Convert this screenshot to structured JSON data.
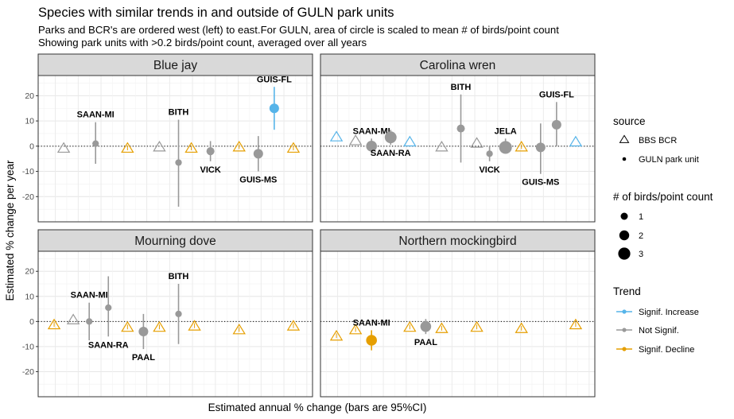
{
  "chart_data": {
    "type": "scatter",
    "title": "Species with similar trends in and outside of GULN park units",
    "subtitle_lines": [
      "Parks and BCR's are ordered west (left) to east.For GULN, area of circle is scaled to mean # of birds/point count",
      "Showing park units with >0.2 birds/point count, averaged over all years"
    ],
    "xlabel": "Estimated annual % change (bars are 95%CI)",
    "ylabel": "Estimated % change per year",
    "ylim": [
      -30,
      28
    ],
    "yticks": [
      20,
      10,
      0,
      -10,
      -20
    ],
    "ytick_labels": [
      "20",
      "10",
      "0",
      "-10",
      "-20"
    ],
    "reference_line": 0,
    "grid": true,
    "legends": {
      "source": {
        "title": "source",
        "items": [
          {
            "label": "BBS BCR",
            "shape": "triangle-open"
          },
          {
            "label": "GULN park unit",
            "shape": "circle"
          }
        ]
      },
      "size": {
        "title": "# of birds/point count",
        "items": [
          {
            "label": "1",
            "value": 1
          },
          {
            "label": "2",
            "value": 2
          },
          {
            "label": "3",
            "value": 3
          }
        ]
      },
      "trend": {
        "title": "Trend",
        "items": [
          {
            "label": "Signif. Increase",
            "color": "#56B4E9"
          },
          {
            "label": "Not Signif.",
            "color": "#999999"
          },
          {
            "label": "Signif. Decline",
            "color": "#E69F00"
          }
        ]
      }
    },
    "panels": [
      {
        "title": "Blue jay",
        "points": [
          {
            "x": 1,
            "y": -1,
            "source": "BBS BCR",
            "trend": "Not Signif."
          },
          {
            "x": 2,
            "y": 1,
            "lo": -7,
            "hi": 9.5,
            "source": "GULN park unit",
            "trend": "Not Signif.",
            "size": 0.2,
            "label": "SAAN-MI"
          },
          {
            "x": 3,
            "y": -1,
            "source": "BBS BCR",
            "trend": "Signif. Decline"
          },
          {
            "x": 4,
            "y": -0.5,
            "source": "BBS BCR",
            "trend": "Not Signif."
          },
          {
            "x": 4.6,
            "y": -6.5,
            "lo": -24,
            "hi": 10.5,
            "source": "GULN park unit",
            "trend": "Not Signif.",
            "size": 0.2,
            "label": "BITH"
          },
          {
            "x": 5,
            "y": -1,
            "source": "BBS BCR",
            "trend": "Signif. Decline"
          },
          {
            "x": 5.6,
            "y": -2,
            "lo": -6,
            "hi": 2,
            "source": "GULN park unit",
            "trend": "Not Signif.",
            "size": 0.5,
            "label": "VICK"
          },
          {
            "x": 6.5,
            "y": -0.5,
            "source": "BBS BCR",
            "trend": "Signif. Decline"
          },
          {
            "x": 7.1,
            "y": -3,
            "lo": -10,
            "hi": 4,
            "source": "GULN park unit",
            "trend": "Not Signif.",
            "size": 1,
            "label": "GUIS-MS"
          },
          {
            "x": 7.6,
            "y": 15,
            "lo": 6.5,
            "hi": 23.5,
            "source": "GULN park unit",
            "trend": "Signif. Increase",
            "size": 1,
            "label": "GUIS-FL"
          },
          {
            "x": 8.2,
            "y": -1,
            "source": "BBS BCR",
            "trend": "Signif. Decline"
          }
        ]
      },
      {
        "title": "Carolina wren",
        "points": [
          {
            "x": 0.7,
            "y": 3.5,
            "source": "BBS BCR",
            "trend": "Signif. Increase"
          },
          {
            "x": 1.3,
            "y": 2,
            "source": "BBS BCR",
            "trend": "Not Signif."
          },
          {
            "x": 1.8,
            "y": 0,
            "lo": -3,
            "hi": 3,
            "source": "GULN park unit",
            "trend": "Not Signif.",
            "size": 1.5,
            "label": "SAAN-MI"
          },
          {
            "x": 2.4,
            "y": 3.5,
            "lo": 0.5,
            "hi": 6.5,
            "source": "GULN park unit",
            "trend": "Not Signif.",
            "size": 2,
            "label": "SAAN-RA"
          },
          {
            "x": 3,
            "y": 1.5,
            "source": "BBS BCR",
            "trend": "Signif. Increase"
          },
          {
            "x": 4,
            "y": -0.5,
            "source": "BBS BCR",
            "trend": "Not Signif."
          },
          {
            "x": 4.6,
            "y": 7,
            "lo": -6.5,
            "hi": 20.5,
            "source": "GULN park unit",
            "trend": "Not Signif.",
            "size": 0.5,
            "label": "BITH"
          },
          {
            "x": 5.1,
            "y": 1,
            "source": "BBS BCR",
            "trend": "Not Signif."
          },
          {
            "x": 5.5,
            "y": -3,
            "lo": -6,
            "hi": 0,
            "source": "GULN park unit",
            "trend": "Not Signif.",
            "size": 0.2,
            "label": "VICK"
          },
          {
            "x": 6,
            "y": -0.5,
            "lo": -3,
            "hi": 3,
            "source": "GULN park unit",
            "trend": "Not Signif.",
            "size": 2.5,
            "label": "JELA"
          },
          {
            "x": 6.5,
            "y": -0.5,
            "source": "BBS BCR",
            "trend": "Signif. Decline"
          },
          {
            "x": 7.1,
            "y": -0.5,
            "lo": -11,
            "hi": 9,
            "source": "GULN park unit",
            "trend": "Not Signif.",
            "size": 1,
            "label": "GUIS-MS"
          },
          {
            "x": 7.6,
            "y": 8.5,
            "lo": 0,
            "hi": 17.5,
            "source": "GULN park unit",
            "trend": "Not Signif.",
            "size": 1,
            "label": "GUIS-FL"
          },
          {
            "x": 8.2,
            "y": 1.5,
            "source": "BBS BCR",
            "trend": "Signif. Increase"
          }
        ]
      },
      {
        "title": "Mourning dove",
        "points": [
          {
            "x": 0.7,
            "y": -1.5,
            "source": "BBS BCR",
            "trend": "Signif. Decline"
          },
          {
            "x": 1.3,
            "y": 0.5,
            "source": "BBS BCR",
            "trend": "Not Signif."
          },
          {
            "x": 1.8,
            "y": 0,
            "lo": -7.5,
            "hi": 7.5,
            "source": "GULN park unit",
            "trend": "Not Signif.",
            "size": 0.2,
            "label": "SAAN-MI"
          },
          {
            "x": 2.4,
            "y": 5.5,
            "lo": -6,
            "hi": 18,
            "source": "GULN park unit",
            "trend": "Not Signif.",
            "size": 0.2,
            "label": "SAAN-RA"
          },
          {
            "x": 3,
            "y": -2.5,
            "source": "BBS BCR",
            "trend": "Signif. Decline"
          },
          {
            "x": 3.5,
            "y": -4,
            "lo": -11,
            "hi": 3,
            "source": "GULN park unit",
            "trend": "Not Signif.",
            "size": 1,
            "label": "PAAL"
          },
          {
            "x": 4,
            "y": -2.5,
            "source": "BBS BCR",
            "trend": "Signif. Decline"
          },
          {
            "x": 4.6,
            "y": 3,
            "lo": -9,
            "hi": 15,
            "source": "GULN park unit",
            "trend": "Not Signif.",
            "size": 0.2,
            "label": "BITH"
          },
          {
            "x": 5.1,
            "y": -2,
            "source": "BBS BCR",
            "trend": "Signif. Decline"
          },
          {
            "x": 6.5,
            "y": -3.5,
            "source": "BBS BCR",
            "trend": "Signif. Decline"
          },
          {
            "x": 8.2,
            "y": -2,
            "source": "BBS BCR",
            "trend": "Signif. Decline"
          }
        ]
      },
      {
        "title": "Northern mockingbird",
        "points": [
          {
            "x": 0.7,
            "y": -6,
            "source": "BBS BCR",
            "trend": "Signif. Decline"
          },
          {
            "x": 1.3,
            "y": -3.5,
            "source": "BBS BCR",
            "trend": "Signif. Decline"
          },
          {
            "x": 1.8,
            "y": -7.5,
            "lo": -11.5,
            "hi": -3.5,
            "source": "GULN park unit",
            "trend": "Signif. Decline",
            "size": 1.5,
            "label": "SAAN-MI"
          },
          {
            "x": 3,
            "y": -2.5,
            "source": "BBS BCR",
            "trend": "Signif. Decline"
          },
          {
            "x": 3.5,
            "y": -2,
            "lo": -5,
            "hi": 1,
            "source": "GULN park unit",
            "trend": "Not Signif.",
            "size": 1.5,
            "label": "PAAL"
          },
          {
            "x": 4,
            "y": -3,
            "source": "BBS BCR",
            "trend": "Signif. Decline"
          },
          {
            "x": 5.1,
            "y": -2.5,
            "source": "BBS BCR",
            "trend": "Signif. Decline"
          },
          {
            "x": 6.5,
            "y": -3,
            "source": "BBS BCR",
            "trend": "Signif. Decline"
          },
          {
            "x": 8.2,
            "y": -1.5,
            "source": "BBS BCR",
            "trend": "Signif. Decline"
          }
        ]
      }
    ]
  }
}
